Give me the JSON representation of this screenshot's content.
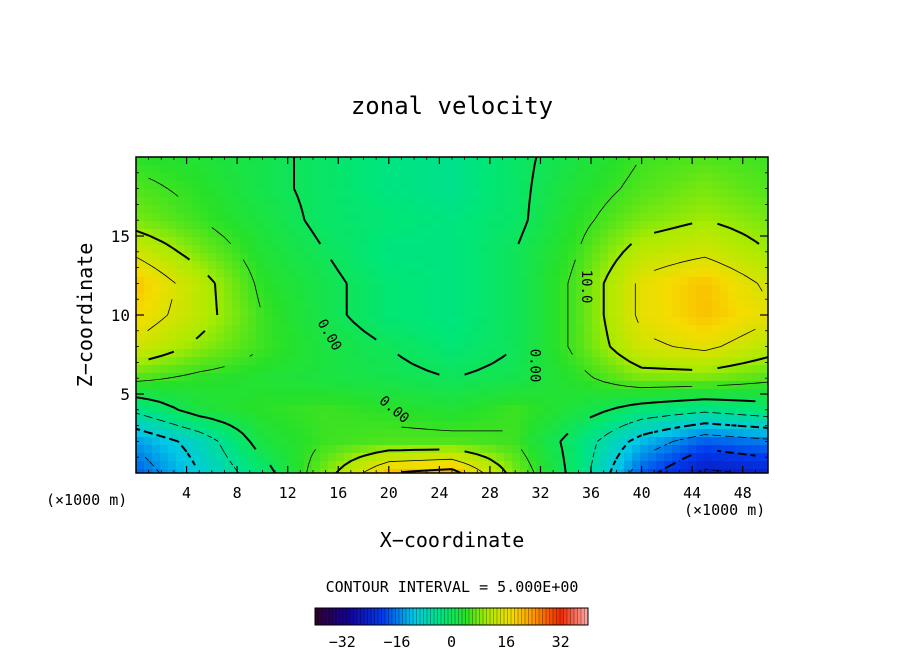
{
  "chart_data": {
    "type": "heatmap",
    "title": "zonal velocity",
    "xlabel": "X−coordinate",
    "ylabel": "Z−coordinate",
    "x_units": "(×1000 m)",
    "y_units": "(×1000 m)",
    "xlim": [
      0,
      50
    ],
    "ylim": [
      0,
      20
    ],
    "xticks": [
      4,
      8,
      12,
      16,
      20,
      24,
      28,
      32,
      36,
      40,
      44,
      48
    ],
    "yticks": [
      5,
      10,
      15
    ],
    "contour_interval_label": "CONTOUR INTERVAL = 5.000E+00",
    "contour_labels": [
      {
        "text": "0.00",
        "x": 15.0,
        "y": 8.6,
        "angle": 60
      },
      {
        "text": "0.00",
        "x": 31.2,
        "y": 6.8,
        "angle": 90
      },
      {
        "text": "10.0",
        "x": 35.3,
        "y": 11.8,
        "angle": 90
      },
      {
        "text": "0.00",
        "x": 20.2,
        "y": 3.8,
        "angle": 40
      }
    ],
    "colorbar": {
      "range": [
        -40,
        40
      ],
      "ticks": [
        -32,
        -16,
        0,
        16,
        32
      ],
      "tick_labels": [
        "−32",
        "−16",
        "0",
        "16",
        "32"
      ]
    },
    "field_grid": {
      "nx": 11,
      "nz": 11,
      "x": [
        0,
        5,
        10,
        15,
        20,
        25,
        30,
        35,
        40,
        45,
        50
      ],
      "z": [
        0,
        2,
        4,
        6,
        8,
        10,
        12,
        14,
        16,
        18,
        20
      ],
      "values": [
        [
          -18,
          -10,
          -2,
          8,
          20,
          22,
          8,
          -2,
          -18,
          -26,
          -24
        ],
        [
          -14,
          -8,
          2,
          5,
          6,
          6,
          5,
          -2,
          -12,
          -18,
          -16
        ],
        [
          -4,
          2,
          4,
          5,
          4,
          3,
          5,
          2,
          -2,
          -4,
          -2
        ],
        [
          6,
          4,
          3,
          2,
          1,
          0,
          1,
          4,
          8,
          8,
          6
        ],
        [
          14,
          9,
          5,
          2,
          0,
          -2,
          0,
          6,
          14,
          16,
          12
        ],
        [
          18,
          12,
          5,
          1,
          -2,
          -3,
          0,
          6,
          16,
          20,
          16
        ],
        [
          20,
          12,
          4,
          1,
          -2,
          -3,
          0,
          6,
          16,
          20,
          14
        ],
        [
          14,
          8,
          3,
          0,
          -3,
          -3,
          0,
          5,
          12,
          14,
          10
        ],
        [
          8,
          5,
          2,
          -1,
          -2,
          -3,
          -1,
          4,
          8,
          10,
          8
        ],
        [
          6,
          4,
          1,
          -1,
          -3,
          -4,
          -1,
          3,
          6,
          8,
          6
        ],
        [
          4,
          3,
          1,
          -1,
          -3,
          -4,
          -1,
          2,
          5,
          6,
          5
        ]
      ]
    }
  }
}
